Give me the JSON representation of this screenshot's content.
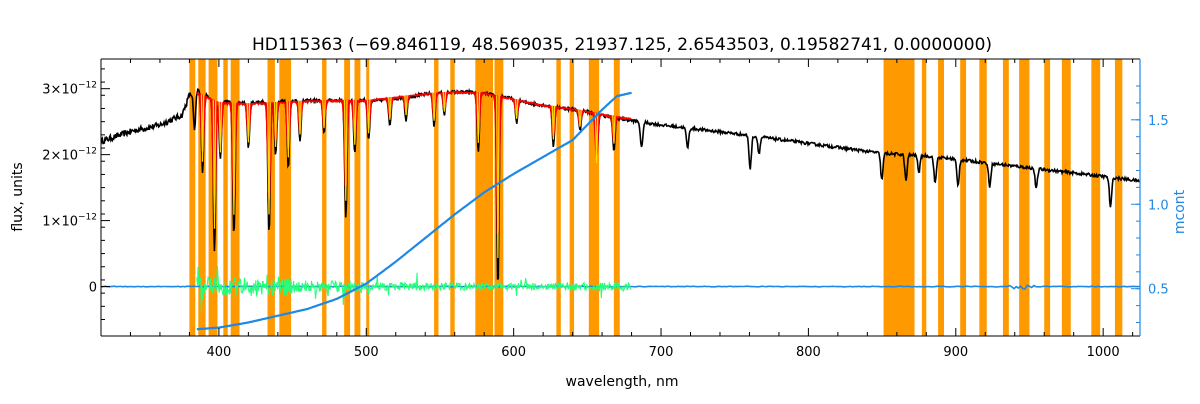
{
  "chart_data": {
    "type": "line",
    "title": "HD115363   (−69.846119, 48.569035, 21937.125, 2.6543503, 0.19582741, 0.0000000)",
    "xlabel": "wavelength, nm",
    "ylabel": "flux, units",
    "y2label": "mcont",
    "xlim": [
      320,
      1025
    ],
    "ylim": [
      -7.5e-13,
      3.45e-12
    ],
    "y2lim": [
      0.22,
      1.86
    ],
    "x_ticks": [
      400,
      500,
      600,
      700,
      800,
      900,
      1000
    ],
    "x_tick_labels": [
      "400",
      "500",
      "600",
      "700",
      "800",
      "900",
      "1000"
    ],
    "y_ticks": [
      0,
      1e-12,
      2e-12,
      3e-12
    ],
    "y_tick_labels": [
      {
        "mantissa": "0",
        "exponent": ""
      },
      {
        "mantissa": "1×10",
        "exponent": "−12"
      },
      {
        "mantissa": "2×10",
        "exponent": "−12"
      },
      {
        "mantissa": "3×10",
        "exponent": "−12"
      }
    ],
    "y2_ticks": [
      0.5,
      1.0,
      1.5
    ],
    "y2_tick_labels": [
      "0.5",
      "1.0",
      "1.5"
    ],
    "colors": {
      "observed": "#000000",
      "model": "#ff0000",
      "model_lines": "#ffd700",
      "continuum": "#1e88e5",
      "residuals": "#22ff7a",
      "masked": "#ff9900",
      "axis2": "#1e88e5"
    },
    "masked_regions": [
      [
        380,
        384
      ],
      [
        386,
        391
      ],
      [
        393,
        399
      ],
      [
        403,
        406
      ],
      [
        408,
        414
      ],
      [
        433,
        438
      ],
      [
        441,
        449
      ],
      [
        470,
        473
      ],
      [
        485,
        489
      ],
      [
        492,
        496
      ],
      [
        500,
        502
      ],
      [
        546,
        549
      ],
      [
        557,
        560
      ],
      [
        574,
        586
      ],
      [
        587,
        593
      ],
      [
        629,
        632
      ],
      [
        638,
        641
      ],
      [
        651,
        658
      ],
      [
        668,
        672
      ],
      [
        851,
        872
      ],
      [
        877,
        880
      ],
      [
        888,
        892
      ],
      [
        903,
        907
      ],
      [
        916,
        921
      ],
      [
        932,
        936
      ],
      [
        943,
        950
      ],
      [
        960,
        964
      ],
      [
        972,
        978
      ],
      [
        992,
        998
      ],
      [
        1008,
        1013
      ]
    ],
    "series": [
      {
        "id": "observed",
        "x": [
          320,
          340,
          360,
          375,
          380,
          385,
          395,
          410,
          430,
          450,
          470,
          490,
          510,
          530,
          550,
          570,
          590,
          610,
          630,
          650,
          670,
          700,
          750,
          800,
          850,
          880,
          900,
          950,
          1000,
          1025
        ],
        "y": [
          2.2e-12,
          2.35e-12,
          2.45e-12,
          2.6e-12,
          2.9e-12,
          3e-12,
          2.85e-12,
          2.78e-12,
          2.8e-12,
          2.82e-12,
          2.82e-12,
          2.83e-12,
          2.82e-12,
          2.88e-12,
          2.95e-12,
          2.95e-12,
          2.9e-12,
          2.78e-12,
          2.72e-12,
          2.65e-12,
          2.55e-12,
          2.45e-12,
          2.32e-12,
          2.17e-12,
          2.02e-12,
          1.98e-12,
          1.93e-12,
          1.8e-12,
          1.67e-12,
          1.6e-12
        ],
        "absorption_lines": [
          {
            "x": 383.5,
            "depth": 6e-13
          },
          {
            "x": 388.9,
            "depth": 1.2e-12
          },
          {
            "x": 397.0,
            "depth": 2.3e-12
          },
          {
            "x": 401.0,
            "depth": 9e-13
          },
          {
            "x": 410.2,
            "depth": 2e-12
          },
          {
            "x": 420.0,
            "depth": 7e-13
          },
          {
            "x": 434.0,
            "depth": 2e-12
          },
          {
            "x": 438.5,
            "depth": 8e-13
          },
          {
            "x": 447.1,
            "depth": 1e-12
          },
          {
            "x": 455.0,
            "depth": 6e-13
          },
          {
            "x": 471.3,
            "depth": 5e-13
          },
          {
            "x": 486.1,
            "depth": 1.8e-12
          },
          {
            "x": 492.2,
            "depth": 8e-13
          },
          {
            "x": 501.6,
            "depth": 6e-13
          },
          {
            "x": 516.0,
            "depth": 4e-13
          },
          {
            "x": 527.0,
            "depth": 3.5e-13
          },
          {
            "x": 546.0,
            "depth": 5e-13
          },
          {
            "x": 553.0,
            "depth": 3.5e-13
          },
          {
            "x": 576.0,
            "depth": 9e-13
          },
          {
            "x": 589.3,
            "depth": 2.9e-12
          },
          {
            "x": 602.0,
            "depth": 3.5e-13
          },
          {
            "x": 627.0,
            "depth": 6e-13
          },
          {
            "x": 645.0,
            "depth": 3e-13
          },
          {
            "x": 656.3,
            "depth": 9e-13
          },
          {
            "x": 668.0,
            "depth": 5e-13
          },
          {
            "x": 686.8,
            "depth": 4e-13
          },
          {
            "x": 718.0,
            "depth": 3e-13
          },
          {
            "x": 760.5,
            "depth": 5e-13
          },
          {
            "x": 766.5,
            "depth": 2.5e-13
          },
          {
            "x": 849.8,
            "depth": 4e-13
          },
          {
            "x": 866.2,
            "depth": 4e-13
          },
          {
            "x": 875.0,
            "depth": 2.5e-13
          },
          {
            "x": 886.0,
            "depth": 4e-13
          },
          {
            "x": 901.5,
            "depth": 4e-13
          },
          {
            "x": 923.0,
            "depth": 3.5e-13
          },
          {
            "x": 954.6,
            "depth": 3e-13
          },
          {
            "x": 1005.0,
            "depth": 4.5e-13
          }
        ],
        "emission_lines": [
          {
            "x": 656.0,
            "height": 7e-13
          }
        ]
      },
      {
        "id": "model",
        "x": [
          385,
          400,
          420,
          440,
          460,
          480,
          500,
          520,
          540,
          560,
          580,
          600,
          620,
          640,
          660,
          680
        ],
        "y": [
          2.95e-12,
          2.8e-12,
          2.78e-12,
          2.8e-12,
          2.82e-12,
          2.83e-12,
          2.83e-12,
          2.88e-12,
          2.93e-12,
          2.96e-12,
          2.94e-12,
          2.85e-12,
          2.76e-12,
          2.7e-12,
          2.62e-12,
          2.55e-12
        ]
      },
      {
        "id": "continuum",
        "axis": "y2",
        "x": [
          385,
          400,
          420,
          440,
          460,
          480,
          500,
          520,
          540,
          560,
          580,
          600,
          620,
          640,
          660,
          670,
          680
        ],
        "y": [
          0.26,
          0.27,
          0.3,
          0.34,
          0.38,
          0.44,
          0.53,
          0.66,
          0.8,
          0.94,
          1.07,
          1.18,
          1.28,
          1.38,
          1.56,
          1.64,
          1.66
        ]
      },
      {
        "id": "residuals",
        "x_range": [
          385,
          680
        ],
        "amplitude": 1.2e-13
      },
      {
        "id": "zero_level",
        "x_range": [
          320,
          1025
        ],
        "y": 0
      }
    ]
  }
}
